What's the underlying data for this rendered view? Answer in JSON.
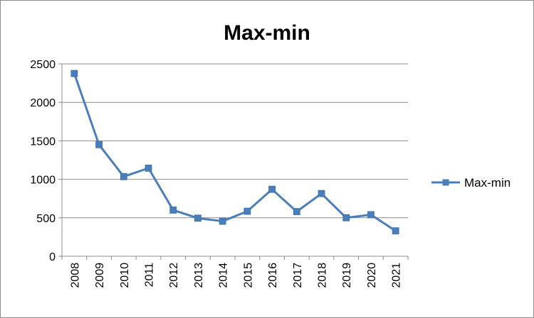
{
  "chart_data": {
    "type": "line",
    "title": "Max-min",
    "xlabel": "",
    "ylabel": "",
    "categories": [
      "2008",
      "2009",
      "2010",
      "2011",
      "2012",
      "2013",
      "2014",
      "2015",
      "2016",
      "2017",
      "2018",
      "2019",
      "2020",
      "2021"
    ],
    "series": [
      {
        "name": "Max-min",
        "color": "#4a7ebb",
        "marker": "square",
        "values": [
          2375,
          1450,
          1035,
          1145,
          600,
          495,
          455,
          585,
          870,
          580,
          815,
          500,
          540,
          330
        ]
      }
    ],
    "ylim": [
      0,
      2500
    ],
    "yticks": [
      0,
      500,
      1000,
      1500,
      2000,
      2500
    ],
    "grid": true,
    "legend": "right"
  }
}
